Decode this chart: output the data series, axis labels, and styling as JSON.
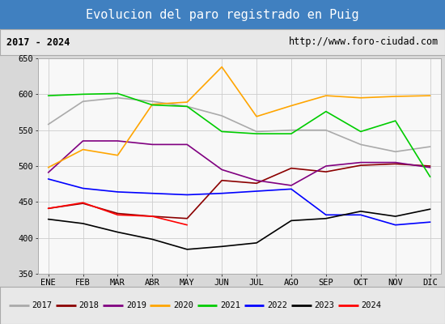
{
  "title": "Evolucion del paro registrado en Puig",
  "subtitle_left": "2017 - 2024",
  "subtitle_right": "http://www.foro-ciudad.com",
  "ylim": [
    350,
    650
  ],
  "months": [
    "ENE",
    "FEB",
    "MAR",
    "ABR",
    "MAY",
    "JUN",
    "JUL",
    "AGO",
    "SEP",
    "OCT",
    "NOV",
    "DIC"
  ],
  "series": {
    "2017": {
      "color": "#aaaaaa",
      "values": [
        558,
        590,
        595,
        590,
        583,
        570,
        548,
        550,
        550,
        530,
        520,
        527
      ]
    },
    "2018": {
      "color": "#8b0000",
      "values": [
        441,
        448,
        434,
        430,
        427,
        480,
        476,
        497,
        492,
        501,
        503,
        500
      ]
    },
    "2019": {
      "color": "#800080",
      "values": [
        491,
        535,
        535,
        530,
        530,
        495,
        480,
        473,
        500,
        505,
        505,
        498
      ]
    },
    "2020": {
      "color": "#ffa500",
      "values": [
        498,
        523,
        515,
        586,
        589,
        638,
        569,
        584,
        598,
        595,
        597,
        598
      ]
    },
    "2021": {
      "color": "#00cc00",
      "values": [
        598,
        600,
        601,
        585,
        583,
        548,
        545,
        545,
        576,
        548,
        563,
        485
      ]
    },
    "2022": {
      "color": "#0000ff",
      "values": [
        482,
        469,
        464,
        462,
        460,
        462,
        465,
        468,
        432,
        432,
        418,
        422
      ]
    },
    "2023": {
      "color": "#000000",
      "values": [
        426,
        420,
        408,
        398,
        384,
        388,
        393,
        424,
        427,
        437,
        430,
        440
      ]
    },
    "2024": {
      "color": "#ff0000",
      "values": [
        441,
        449,
        432,
        430,
        418,
        null,
        null,
        null,
        null,
        null,
        null,
        null
      ]
    }
  },
  "title_bg_color": "#4080c0",
  "title_color": "#ffffff",
  "subtitle_bg_color": "#e8e8e8",
  "plot_bg_color": "#f8f8f8",
  "border_color": "#aaaaaa",
  "grid_color": "#cccccc",
  "fig_bg_color": "#d8d8d8"
}
